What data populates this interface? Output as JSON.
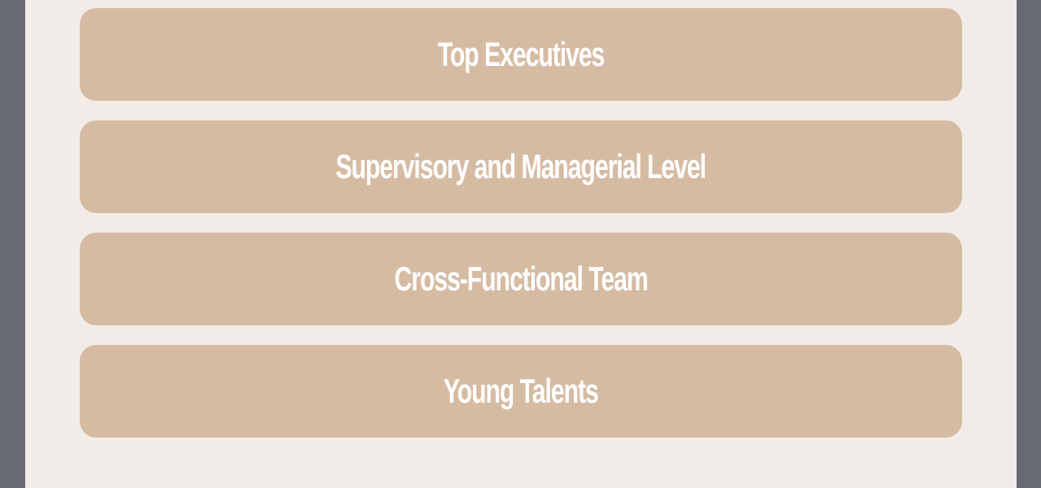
{
  "options": [
    {
      "label": "Top Executives"
    },
    {
      "label": "Supervisory and Managerial Level"
    },
    {
      "label": "Cross-Functional Team"
    },
    {
      "label": "Young Talents"
    }
  ],
  "colors": {
    "outer_background": "#676a75",
    "panel_background": "#f1ece8",
    "button_fill": "#d6bba3",
    "button_text": "#ffffff"
  }
}
